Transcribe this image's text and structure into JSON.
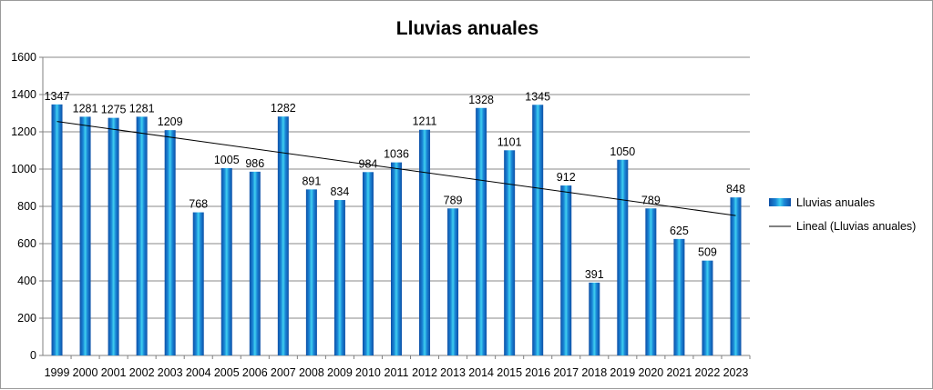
{
  "chart_data": {
    "type": "bar",
    "title": "Lluvias anuales",
    "xlabel": "",
    "ylabel": "",
    "categories": [
      "1999",
      "2000",
      "2001",
      "2002",
      "2003",
      "2004",
      "2005",
      "2006",
      "2007",
      "2008",
      "2009",
      "2010",
      "2011",
      "2012",
      "2013",
      "2014",
      "2015",
      "2016",
      "2017",
      "2018",
      "2019",
      "2020",
      "2021",
      "2022",
      "2023"
    ],
    "series": [
      {
        "name": "Lluvias anuales",
        "values": [
          1347,
          1281,
          1275,
          1281,
          1209,
          768,
          1005,
          986,
          1282,
          891,
          834,
          984,
          1036,
          1211,
          789,
          1328,
          1101,
          1345,
          912,
          391,
          1050,
          789,
          625,
          509,
          848
        ],
        "color": "#1a86d6"
      }
    ],
    "trendline": {
      "name": "Lineal (Lluvias anuales)",
      "type": "linear",
      "color": "#000000"
    },
    "ylim": [
      0,
      1600
    ],
    "yticks": [
      0,
      200,
      400,
      600,
      800,
      1000,
      1200,
      1400,
      1600
    ],
    "grid": true,
    "legend": "right"
  }
}
